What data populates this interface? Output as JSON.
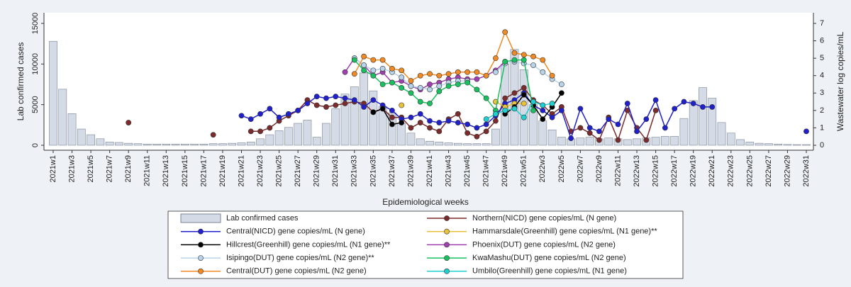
{
  "chart_data": {
    "type": "bar",
    "x_label": "Epidemiological weeks",
    "y_label": "Lab confirmed cases",
    "y2_label": "Wastewater log copies/mL",
    "categories": [
      "2021w1",
      null,
      "2021w3",
      null,
      "2021w5",
      null,
      "2021w7",
      null,
      "2021w9",
      null,
      "2021w11",
      null,
      "2021w13",
      null,
      "2021w15",
      null,
      "2021w17",
      null,
      "2021w19",
      null,
      "2021w21",
      null,
      "2021w23",
      null,
      "2021w25",
      null,
      "2021w27",
      null,
      "2021w29",
      null,
      "2021w31",
      null,
      "2021w33",
      null,
      "2021w35",
      null,
      "2021w37",
      null,
      "2021w39",
      null,
      "2021w41",
      null,
      "2021w43",
      null,
      "2021w45",
      null,
      "2021w47",
      null,
      "2021w49",
      null,
      "2021w51",
      null,
      "2022w3",
      null,
      "2022w5",
      null,
      "2022w7",
      null,
      "2022w9",
      null,
      "2022w11",
      null,
      "2022w13",
      null,
      "2022w15",
      null,
      "2022w17",
      null,
      "2022w19",
      null,
      "2022w21",
      null,
      "2022w23",
      null,
      "2022w25",
      null,
      "2022w27",
      null,
      "2022w29",
      null,
      "2022w31"
    ],
    "ylim": [
      0,
      15000
    ],
    "yticks": [
      0,
      5000,
      10000,
      15000
    ],
    "y2lim": [
      0,
      7
    ],
    "y2ticks": [
      0,
      1,
      2,
      3,
      4,
      5,
      6,
      7
    ],
    "grid": false,
    "series": [
      {
        "name": "Lab confirmed cases",
        "type": "bar",
        "color": "#d5dbe6",
        "values": [
          12800,
          6900,
          3900,
          2000,
          1300,
          800,
          400,
          350,
          250,
          200,
          150,
          150,
          150,
          150,
          150,
          150,
          150,
          200,
          200,
          250,
          300,
          400,
          800,
          1300,
          1800,
          2200,
          2700,
          3100,
          1000,
          2700,
          4500,
          6300,
          7200,
          8900,
          6700,
          4800,
          4000,
          2700,
          1500,
          800,
          500,
          400,
          300,
          250,
          200,
          200,
          200,
          2000,
          10000,
          11800,
          9300,
          5000,
          3000,
          1900,
          1000,
          800,
          900,
          1000,
          800,
          900,
          800,
          700,
          800,
          900,
          1000,
          1100,
          1100,
          3300,
          5500,
          7100,
          5800,
          2800,
          1500,
          700,
          400,
          250,
          200,
          150,
          100,
          80,
          80
        ]
      },
      {
        "name": "Northern(NICD) gene copies/mL (N gene)",
        "type": "line",
        "axis": "y2",
        "color": "#7b2b2b",
        "values": [
          null,
          null,
          null,
          null,
          null,
          null,
          null,
          null,
          1.3,
          null,
          null,
          null,
          null,
          null,
          null,
          null,
          null,
          0.6,
          null,
          null,
          null,
          0.8,
          0.8,
          1.0,
          1.4,
          1.7,
          2.0,
          2.6,
          2.3,
          2.2,
          2.3,
          2.4,
          2.5,
          2.4,
          1.9,
          2.1,
          1.6,
          1.6,
          1.0,
          1.3,
          1.0,
          0.8,
          1.5,
          1.8,
          0.7,
          0.5,
          0.8,
          1.4,
          2.7,
          3.0,
          3.3,
          2.6,
          2.3,
          1.8,
          2.2,
          0.8,
          1.0,
          0.7,
          0.3,
          1.6,
          0.3,
          2.0,
          1.0,
          0.3,
          2.0,
          null,
          null,
          null,
          null,
          null,
          null,
          null,
          null,
          null,
          null,
          null,
          null,
          null,
          null,
          null,
          null
        ]
      },
      {
        "name": "Central(NICD) gene copies/mL (N gene)",
        "type": "line",
        "axis": "y2",
        "color": "#2020cc",
        "values": [
          null,
          null,
          null,
          null,
          null,
          null,
          null,
          null,
          null,
          null,
          null,
          null,
          null,
          null,
          null,
          null,
          null,
          null,
          null,
          null,
          1.7,
          1.5,
          1.8,
          2.1,
          1.6,
          1.8,
          2.0,
          2.4,
          2.8,
          2.7,
          2.8,
          2.7,
          2.6,
          2.2,
          2.6,
          2.3,
          2.0,
          1.5,
          1.6,
          1.8,
          1.4,
          1.3,
          1.4,
          1.3,
          1.2,
          1.0,
          1.2,
          1.7,
          2.4,
          2.6,
          3.0,
          2.3,
          2.0,
          1.6,
          2.0,
          0.4,
          2.1,
          1.0,
          0.8,
          1.5,
          1.2,
          2.4,
          0.8,
          1.5,
          2.6,
          1.0,
          2.1,
          2.5,
          2.4,
          2.2,
          2.2,
          null,
          null,
          null,
          null,
          null,
          null,
          null,
          null,
          null,
          0.8
        ]
      },
      {
        "name": "Hammarsdale(Greenhill) gene copies/mL (N1 gene)**",
        "type": "line",
        "axis": "y2",
        "color": "#e8c33a",
        "values": [
          null,
          null,
          null,
          null,
          null,
          null,
          null,
          null,
          null,
          null,
          null,
          null,
          null,
          null,
          null,
          null,
          null,
          null,
          null,
          null,
          null,
          null,
          null,
          null,
          null,
          null,
          null,
          null,
          null,
          null,
          null,
          null,
          null,
          null,
          null,
          null,
          null,
          2.3,
          null,
          null,
          null,
          null,
          null,
          null,
          null,
          null,
          null,
          2.5,
          2.2,
          2.4,
          2.4,
          null,
          null,
          null,
          null,
          null,
          null,
          null,
          null,
          null,
          null,
          null,
          null,
          null,
          null,
          null,
          null,
          null,
          null,
          null,
          null,
          null,
          null,
          null,
          null,
          null,
          null,
          null,
          null,
          null,
          null
        ]
      },
      {
        "name": "Hillcrest(Greenhill) gene copies/mL (N1 gene)**",
        "type": "line",
        "axis": "y2",
        "color": "#000000",
        "values": [
          null,
          null,
          null,
          null,
          null,
          null,
          null,
          null,
          null,
          null,
          null,
          null,
          null,
          null,
          null,
          null,
          null,
          null,
          null,
          null,
          null,
          null,
          null,
          null,
          null,
          null,
          null,
          null,
          null,
          null,
          null,
          null,
          null,
          null,
          1.9,
          2.1,
          1.2,
          1.3,
          null,
          null,
          null,
          null,
          null,
          null,
          null,
          null,
          null,
          null,
          1.8,
          2.2,
          2.9,
          2.3,
          1.5,
          2.2,
          3.0,
          null,
          null,
          null,
          null,
          null,
          null,
          null,
          null,
          null,
          null,
          null,
          null,
          null,
          null,
          null,
          null,
          null,
          null,
          null,
          null,
          null,
          null,
          null,
          null,
          null,
          null
        ]
      },
      {
        "name": "Phoenix(DUT) gene copies/mL (N2 gene)",
        "type": "line",
        "axis": "y2",
        "color": "#a040b0",
        "values": [
          null,
          null,
          null,
          null,
          null,
          null,
          null,
          null,
          null,
          null,
          null,
          null,
          null,
          null,
          null,
          null,
          null,
          null,
          null,
          null,
          null,
          null,
          null,
          null,
          null,
          null,
          null,
          null,
          null,
          null,
          null,
          4.2,
          5.0,
          4.6,
          4.0,
          4.2,
          3.6,
          3.7,
          3.4,
          3.2,
          3.5,
          3.6,
          3.8,
          3.9,
          3.8,
          3.8,
          4.0,
          4.3,
          4.8,
          null,
          null,
          null,
          null,
          null,
          null,
          null,
          null,
          null,
          null,
          null,
          null,
          null,
          null,
          null,
          null,
          null,
          null,
          null,
          null,
          null,
          null,
          null,
          null,
          null,
          null,
          null,
          null,
          null,
          null,
          null,
          null
        ]
      },
      {
        "name": "Isipingo(DUT) gene copies/mL (N2 gene)**",
        "type": "line",
        "axis": "y2",
        "color": "#b9d3ea",
        "values": [
          null,
          null,
          null,
          null,
          null,
          null,
          null,
          null,
          null,
          null,
          null,
          null,
          null,
          null,
          null,
          null,
          null,
          null,
          null,
          null,
          null,
          null,
          null,
          null,
          null,
          null,
          null,
          null,
          null,
          null,
          null,
          null,
          5.0,
          4.6,
          4.3,
          4.4,
          4.2,
          3.9,
          3.4,
          3.3,
          3.2,
          3.4,
          3.6,
          3.7,
          3.7,
          null,
          null,
          4.2,
          4.7,
          4.8,
          4.7,
          4.6,
          4.2,
          3.8,
          3.5,
          null,
          null,
          null,
          null,
          null,
          null,
          null,
          null,
          null,
          null,
          null,
          null,
          null,
          null,
          null,
          null,
          null,
          null,
          null,
          null,
          null,
          null,
          null,
          null,
          null,
          null
        ]
      },
      {
        "name": "KwaMashu(DUT) gene copies/mL (N2 gene)",
        "type": "line",
        "axis": "y2",
        "color": "#19c060",
        "values": [
          null,
          null,
          null,
          null,
          null,
          null,
          null,
          null,
          null,
          null,
          null,
          null,
          null,
          null,
          null,
          null,
          null,
          null,
          null,
          null,
          null,
          null,
          null,
          null,
          null,
          null,
          null,
          null,
          null,
          null,
          null,
          null,
          4.9,
          4.3,
          4.0,
          3.5,
          3.6,
          3.3,
          3.0,
          2.5,
          2.4,
          3.1,
          3.4,
          3.5,
          3.6,
          3.2,
          2.7,
          2.0,
          4.8,
          4.9,
          4.9,
          2.0,
          null,
          null,
          null,
          null,
          null,
          null,
          null,
          null,
          null,
          null,
          null,
          null,
          null,
          null,
          null,
          null,
          null,
          null,
          null,
          null,
          null,
          null,
          null,
          null,
          null,
          null,
          null,
          null,
          null
        ]
      },
      {
        "name": "Central(DUT) gene copies/mL (N2 gene)",
        "type": "line",
        "axis": "y2",
        "color": "#f08a24",
        "values": [
          null,
          null,
          null,
          null,
          null,
          null,
          null,
          null,
          null,
          null,
          null,
          null,
          null,
          null,
          null,
          null,
          null,
          null,
          null,
          null,
          null,
          null,
          null,
          null,
          null,
          null,
          null,
          null,
          null,
          null,
          null,
          null,
          4.1,
          5.1,
          4.9,
          4.9,
          4.4,
          4.3,
          3.7,
          4.0,
          4.1,
          4.0,
          4.1,
          4.2,
          4.2,
          4.2,
          4.0,
          5.0,
          6.5,
          5.3,
          5.2,
          5.1,
          4.9,
          4.0,
          null,
          null,
          null,
          null,
          null,
          null,
          null,
          null,
          null,
          null,
          null,
          null,
          null,
          null,
          null,
          null,
          null,
          null,
          null,
          null,
          null,
          null,
          null,
          null,
          null,
          null,
          null
        ]
      },
      {
        "name": "Umbilo(Greenhill) gene copies/mL (N1 gene)",
        "type": "line",
        "axis": "y2",
        "color": "#20d0d0",
        "values": [
          null,
          null,
          null,
          null,
          null,
          null,
          null,
          null,
          null,
          null,
          null,
          null,
          null,
          null,
          null,
          null,
          null,
          null,
          null,
          null,
          null,
          null,
          null,
          null,
          null,
          null,
          null,
          null,
          null,
          null,
          null,
          null,
          null,
          null,
          null,
          null,
          null,
          null,
          null,
          null,
          null,
          null,
          null,
          null,
          null,
          null,
          1.5,
          1.8,
          2.0,
          2.1,
          1.6,
          2.5,
          2.3,
          2.4,
          null,
          null,
          null,
          null,
          null,
          null,
          null,
          null,
          null,
          null,
          null,
          null,
          null,
          null,
          null,
          null,
          null,
          null,
          null,
          null,
          null,
          null,
          null,
          null,
          null,
          null,
          null
        ]
      }
    ]
  }
}
